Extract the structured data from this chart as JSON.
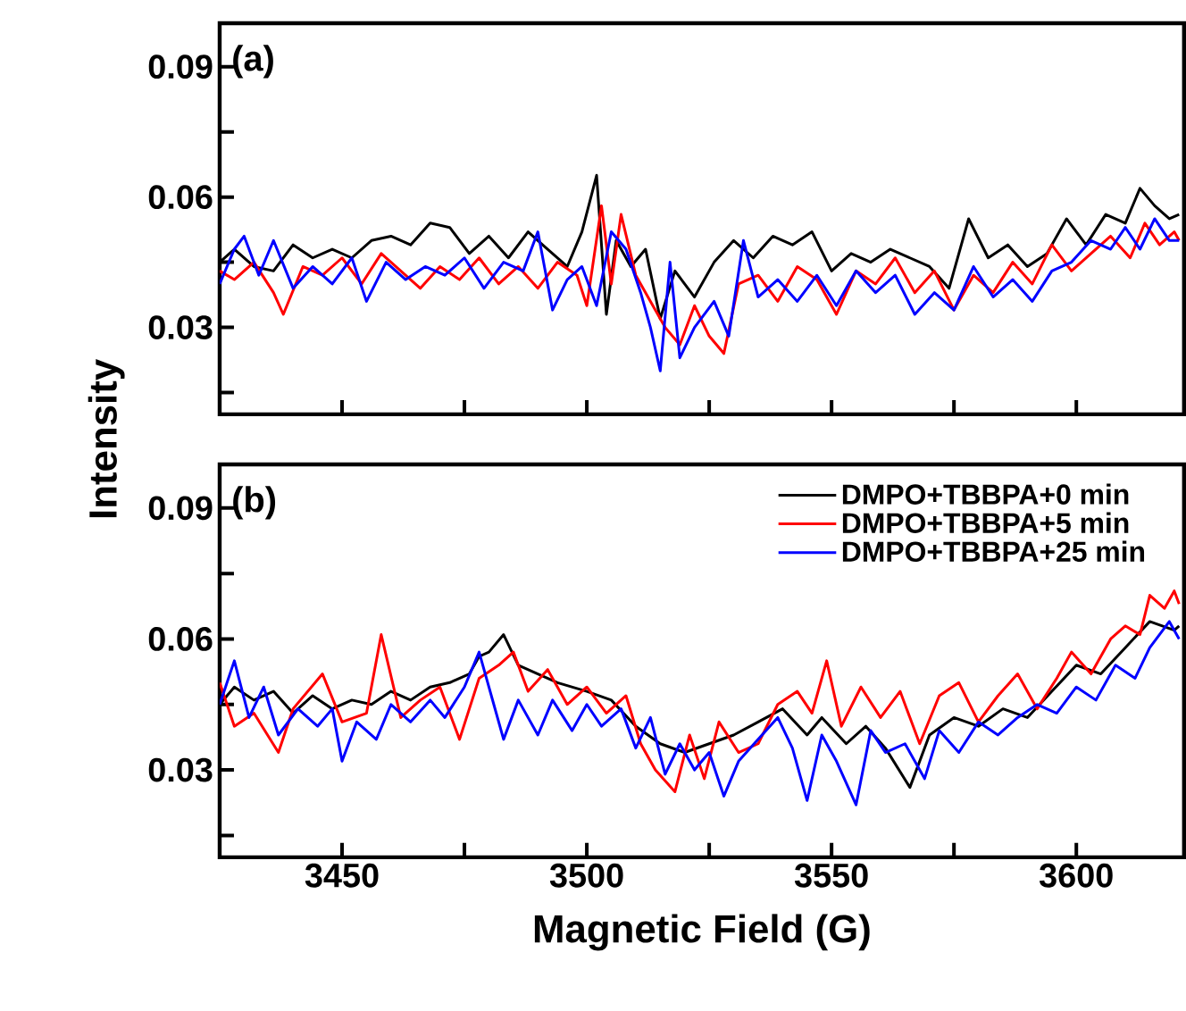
{
  "chart_data": [
    {
      "type": "line",
      "ylabel": "Intensity",
      "annotations": [
        "(a)"
      ],
      "tick_labels": "y",
      "xlim": [
        3425,
        3622
      ],
      "ylim": [
        0.01,
        0.1
      ],
      "xticks": [
        {
          "value": 3450,
          "label": null
        },
        {
          "value": 3475,
          "label": null
        },
        {
          "value": 3500,
          "label": null
        },
        {
          "value": 3525,
          "label": null
        },
        {
          "value": 3550,
          "label": null
        },
        {
          "value": 3575,
          "label": null
        },
        {
          "value": 3600,
          "label": null
        }
      ],
      "yticks": [
        {
          "value": 0.015,
          "label": null
        },
        0.03,
        {
          "value": 0.045,
          "label": null
        },
        0.06,
        {
          "value": 0.075,
          "label": null
        },
        0.09
      ],
      "series": [
        {
          "color": "#000000",
          "x": [
            3425,
            3428,
            3432,
            3436,
            3440,
            3444,
            3448,
            3452,
            3456,
            3460,
            3464,
            3468,
            3472,
            3476,
            3480,
            3484,
            3488,
            3492,
            3496,
            3499,
            3502,
            3504,
            3506,
            3509,
            3512,
            3515,
            3518,
            3522,
            3526,
            3530,
            3534,
            3538,
            3542,
            3546,
            3550,
            3554,
            3558,
            3562,
            3566,
            3570,
            3574,
            3578,
            3582,
            3586,
            3590,
            3594,
            3598,
            3602,
            3606,
            3610,
            3613,
            3616,
            3619,
            3621
          ],
          "values": [
            0.045,
            0.048,
            0.044,
            0.043,
            0.049,
            0.046,
            0.048,
            0.046,
            0.05,
            0.051,
            0.049,
            0.054,
            0.053,
            0.047,
            0.051,
            0.046,
            0.052,
            0.048,
            0.044,
            0.052,
            0.065,
            0.033,
            0.05,
            0.044,
            0.048,
            0.032,
            0.043,
            0.037,
            0.045,
            0.05,
            0.046,
            0.051,
            0.049,
            0.052,
            0.043,
            0.047,
            0.045,
            0.048,
            0.046,
            0.044,
            0.039,
            0.055,
            0.046,
            0.049,
            0.044,
            0.047,
            0.055,
            0.049,
            0.056,
            0.054,
            0.062,
            0.058,
            0.055,
            0.056
          ]
        },
        {
          "color": "#ff0000",
          "x": [
            3425,
            3428,
            3432,
            3436,
            3438,
            3442,
            3446,
            3450,
            3454,
            3458,
            3462,
            3466,
            3470,
            3474,
            3478,
            3482,
            3486,
            3490,
            3494,
            3498,
            3500,
            3503,
            3505,
            3507,
            3510,
            3513,
            3516,
            3519,
            3522,
            3525,
            3528,
            3531,
            3535,
            3539,
            3543,
            3547,
            3551,
            3555,
            3559,
            3563,
            3567,
            3571,
            3575,
            3579,
            3583,
            3587,
            3591,
            3595,
            3599,
            3603,
            3607,
            3611,
            3614,
            3617,
            3620,
            3621
          ],
          "values": [
            0.043,
            0.041,
            0.045,
            0.038,
            0.033,
            0.044,
            0.042,
            0.046,
            0.04,
            0.047,
            0.043,
            0.039,
            0.044,
            0.041,
            0.046,
            0.04,
            0.044,
            0.039,
            0.045,
            0.042,
            0.035,
            0.058,
            0.04,
            0.056,
            0.042,
            0.036,
            0.03,
            0.026,
            0.035,
            0.028,
            0.024,
            0.04,
            0.042,
            0.036,
            0.044,
            0.041,
            0.033,
            0.043,
            0.04,
            0.046,
            0.038,
            0.043,
            0.034,
            0.042,
            0.038,
            0.045,
            0.04,
            0.049,
            0.043,
            0.047,
            0.051,
            0.046,
            0.054,
            0.049,
            0.052,
            0.05
          ]
        },
        {
          "color": "#0000ff",
          "x": [
            3425,
            3428,
            3430,
            3433,
            3436,
            3440,
            3444,
            3448,
            3452,
            3455,
            3459,
            3463,
            3467,
            3471,
            3475,
            3479,
            3483,
            3487,
            3490,
            3493,
            3496,
            3499,
            3502,
            3505,
            3508,
            3511,
            3513,
            3515,
            3517,
            3519,
            3522,
            3526,
            3529,
            3532,
            3535,
            3539,
            3543,
            3547,
            3551,
            3555,
            3559,
            3563,
            3567,
            3571,
            3575,
            3579,
            3583,
            3587,
            3591,
            3595,
            3599,
            3603,
            3607,
            3610,
            3613,
            3616,
            3619,
            3621
          ],
          "values": [
            0.04,
            0.048,
            0.051,
            0.042,
            0.05,
            0.039,
            0.044,
            0.04,
            0.046,
            0.036,
            0.045,
            0.041,
            0.044,
            0.042,
            0.046,
            0.039,
            0.045,
            0.043,
            0.052,
            0.034,
            0.041,
            0.044,
            0.035,
            0.052,
            0.048,
            0.038,
            0.03,
            0.02,
            0.045,
            0.023,
            0.03,
            0.036,
            0.028,
            0.05,
            0.037,
            0.041,
            0.036,
            0.042,
            0.035,
            0.043,
            0.038,
            0.042,
            0.033,
            0.038,
            0.034,
            0.044,
            0.037,
            0.041,
            0.036,
            0.043,
            0.045,
            0.05,
            0.048,
            0.053,
            0.048,
            0.055,
            0.05,
            0.05
          ]
        }
      ]
    },
    {
      "type": "line",
      "xlabel": "Magnetic Field (G)",
      "annotations": [
        "(b)"
      ],
      "legend": "top right",
      "xlim": [
        3425,
        3622
      ],
      "ylim": [
        0.01,
        0.1
      ],
      "xticks": [
        3450,
        {
          "value": 3475,
          "label": null
        },
        3500,
        {
          "value": 3525,
          "label": null
        },
        3550,
        {
          "value": 3575,
          "label": null
        },
        3600
      ],
      "yticks": [
        {
          "value": 0.015,
          "label": null
        },
        0.03,
        {
          "value": 0.045,
          "label": null
        },
        0.06,
        {
          "value": 0.075,
          "label": null
        },
        0.09
      ],
      "series": [
        {
          "name": "DMPO+TBBPA+0 min",
          "color": "#000000",
          "x": [
            3425,
            3428,
            3432,
            3436,
            3440,
            3444,
            3448,
            3452,
            3456,
            3460,
            3464,
            3468,
            3472,
            3476,
            3478,
            3480,
            3483,
            3486,
            3490,
            3494,
            3500,
            3505,
            3510,
            3515,
            3520,
            3525,
            3530,
            3535,
            3540,
            3545,
            3548,
            3553,
            3557,
            3561,
            3566,
            3570,
            3575,
            3580,
            3585,
            3590,
            3595,
            3600,
            3605,
            3610,
            3615,
            3620,
            3621
          ],
          "values": [
            0.045,
            0.049,
            0.046,
            0.048,
            0.043,
            0.047,
            0.044,
            0.046,
            0.045,
            0.048,
            0.046,
            0.049,
            0.05,
            0.052,
            0.056,
            0.057,
            0.061,
            0.054,
            0.052,
            0.05,
            0.048,
            0.046,
            0.04,
            0.036,
            0.034,
            0.036,
            0.038,
            0.041,
            0.044,
            0.038,
            0.042,
            0.036,
            0.04,
            0.035,
            0.026,
            0.038,
            0.042,
            0.04,
            0.044,
            0.042,
            0.048,
            0.054,
            0.052,
            0.058,
            0.064,
            0.062,
            0.063
          ]
        },
        {
          "name": "DMPO+TBBPA+5 min",
          "color": "#ff0000",
          "x": [
            3425,
            3428,
            3432,
            3437,
            3440,
            3446,
            3450,
            3455,
            3458,
            3462,
            3466,
            3470,
            3474,
            3478,
            3482,
            3485,
            3488,
            3492,
            3496,
            3500,
            3504,
            3508,
            3511,
            3514,
            3518,
            3521,
            3524,
            3527,
            3531,
            3535,
            3539,
            3543,
            3546,
            3549,
            3552,
            3556,
            3560,
            3564,
            3568,
            3572,
            3576,
            3580,
            3584,
            3588,
            3592,
            3596,
            3599,
            3603,
            3607,
            3610,
            3613,
            3615,
            3618,
            3620,
            3621
          ],
          "values": [
            0.05,
            0.04,
            0.043,
            0.034,
            0.044,
            0.052,
            0.041,
            0.043,
            0.061,
            0.042,
            0.046,
            0.049,
            0.037,
            0.051,
            0.054,
            0.057,
            0.048,
            0.053,
            0.045,
            0.049,
            0.043,
            0.047,
            0.036,
            0.03,
            0.025,
            0.038,
            0.028,
            0.041,
            0.034,
            0.036,
            0.045,
            0.048,
            0.043,
            0.055,
            0.04,
            0.049,
            0.042,
            0.048,
            0.036,
            0.047,
            0.05,
            0.041,
            0.047,
            0.052,
            0.044,
            0.051,
            0.057,
            0.052,
            0.06,
            0.063,
            0.061,
            0.07,
            0.067,
            0.071,
            0.068
          ]
        },
        {
          "name": "DMPO+TBBPA+25 min",
          "color": "#0000ff",
          "x": [
            3425,
            3428,
            3431,
            3434,
            3437,
            3441,
            3445,
            3448,
            3450,
            3453,
            3457,
            3460,
            3464,
            3468,
            3471,
            3475,
            3478,
            3481,
            3483,
            3486,
            3490,
            3493,
            3497,
            3500,
            3503,
            3507,
            3510,
            3513,
            3516,
            3519,
            3522,
            3525,
            3528,
            3531,
            3535,
            3539,
            3542,
            3545,
            3548,
            3551,
            3555,
            3558,
            3561,
            3565,
            3569,
            3572,
            3576,
            3580,
            3584,
            3588,
            3592,
            3596,
            3600,
            3604,
            3608,
            3612,
            3615,
            3619,
            3621
          ],
          "values": [
            0.045,
            0.055,
            0.042,
            0.049,
            0.038,
            0.044,
            0.04,
            0.044,
            0.032,
            0.041,
            0.037,
            0.045,
            0.041,
            0.046,
            0.042,
            0.049,
            0.057,
            0.045,
            0.037,
            0.046,
            0.038,
            0.046,
            0.039,
            0.045,
            0.04,
            0.044,
            0.035,
            0.042,
            0.029,
            0.036,
            0.03,
            0.034,
            0.024,
            0.032,
            0.037,
            0.042,
            0.035,
            0.023,
            0.038,
            0.032,
            0.022,
            0.039,
            0.034,
            0.036,
            0.028,
            0.039,
            0.034,
            0.041,
            0.038,
            0.042,
            0.045,
            0.043,
            0.049,
            0.046,
            0.054,
            0.051,
            0.058,
            0.064,
            0.06
          ]
        }
      ]
    }
  ]
}
